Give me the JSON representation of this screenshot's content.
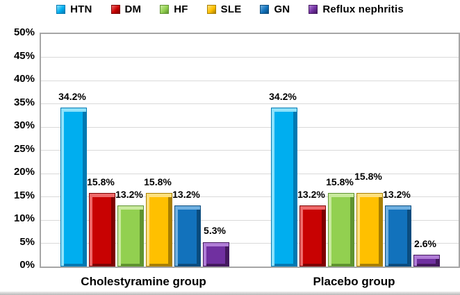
{
  "chart_data": {
    "type": "bar",
    "title": "",
    "categories": [
      "Cholestyramine group",
      "Placebo group"
    ],
    "series": [
      {
        "name": "HTN",
        "color": "#00AEEF",
        "light": "#8fe2fb",
        "dark": "#0079b2",
        "values": [
          34.2,
          34.2
        ]
      },
      {
        "name": "DM",
        "color": "#C80202",
        "light": "#ee6a6a",
        "dark": "#7e0000",
        "values": [
          15.8,
          13.2
        ]
      },
      {
        "name": "HF",
        "color": "#92D050",
        "light": "#c9ea9e",
        "dark": "#5f9330",
        "values": [
          13.2,
          15.8
        ]
      },
      {
        "name": "SLE",
        "color": "#FFC000",
        "light": "#ffe07e",
        "dark": "#a87e00",
        "values": [
          15.8,
          15.8
        ]
      },
      {
        "name": "GN",
        "color": "#1272BC",
        "light": "#6fb0e0",
        "dark": "#0a4c7e",
        "values": [
          13.2,
          13.2
        ]
      },
      {
        "name": "Reflux nephritis",
        "color": "#7030A0",
        "light": "#b07cd6",
        "dark": "#44195f",
        "values": [
          5.3,
          2.6
        ]
      }
    ],
    "value_label_format": "{value}%",
    "value_labels": [
      [
        "34.2%",
        "15.8%",
        "13.2%",
        "15.8%",
        "13.2%",
        "5.3%"
      ],
      [
        "34.2%",
        "13.2%",
        "15.8%",
        "15.8%",
        "13.2%",
        "2.6%"
      ]
    ],
    "ylim": [
      0,
      50
    ],
    "y_tick_step": 5,
    "y_ticks": [
      "0%",
      "5%",
      "10%",
      "15%",
      "20%",
      "25%",
      "30%",
      "35%",
      "40%",
      "45%",
      "50%"
    ],
    "grid": true,
    "legend_position": "top",
    "grid_color": "#d9d9d9",
    "plot_border_color": "#a6a6a6",
    "text_color": "#000000"
  }
}
